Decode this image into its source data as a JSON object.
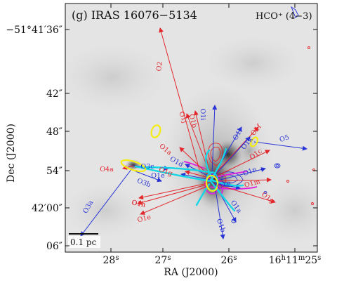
{
  "panel_title": "(g) IRAS 16076−5134",
  "line_label": "HCO⁺ (4−3)",
  "x_axis_label": "RA (J2000)",
  "y_axis_label": "Dec (J2000)",
  "x_ticks": [
    {
      "parts": [
        [
          "28",
          ""
        ],
        [
          "s",
          "sup"
        ]
      ]
    },
    {
      "parts": [
        [
          "27",
          ""
        ],
        [
          "s",
          "sup"
        ]
      ]
    },
    {
      "parts": [
        [
          "26",
          ""
        ],
        [
          "s",
          "sup"
        ]
      ]
    },
    {
      "parts": [
        [
          "16",
          ""
        ],
        [
          "h",
          "sup"
        ],
        [
          "11",
          ""
        ],
        [
          "m",
          "sup"
        ],
        [
          "25",
          ""
        ],
        [
          "s",
          "sup"
        ]
      ]
    }
  ],
  "y_ticks": [
    "−51°41′36″",
    "42″",
    "48″",
    "54″",
    "42′00″",
    "06″"
  ],
  "scale_bar_label": "0.1 pc",
  "colors": {
    "red": "#e3262b",
    "blue": "#2733d6",
    "magenta": "#e01ee0",
    "cyan": "#12d6e6",
    "yellow": "#f4ec12"
  },
  "outflows": [
    {
      "id": "O2",
      "color": "red"
    },
    {
      "id": "O1j",
      "color": "red"
    },
    {
      "id": "O1b",
      "color": "red"
    },
    {
      "id": "O1i",
      "color": "blue"
    },
    {
      "id": "O1a",
      "color": "red"
    },
    {
      "id": "O1l",
      "color": "blue"
    },
    {
      "id": "O1f",
      "color": "red"
    },
    {
      "id": "O1k",
      "color": "blue"
    },
    {
      "id": "O1c",
      "color": "red"
    },
    {
      "id": "O5",
      "color": "blue"
    },
    {
      "id": "O1d",
      "color": "blue"
    },
    {
      "id": "O1g",
      "color": "red"
    },
    {
      "id": "O1e",
      "color": "blue"
    },
    {
      "id": "O4a",
      "color": "red"
    },
    {
      "id": "O3c",
      "color": "blue"
    },
    {
      "id": "O1n",
      "color": "blue"
    },
    {
      "id": "O1m",
      "color": "red"
    },
    {
      "id": "O3b",
      "color": "blue"
    },
    {
      "id": "O1h",
      "color": "red"
    },
    {
      "id": "O1o",
      "color": "blue"
    },
    {
      "id": "O1g",
      "color": "red"
    },
    {
      "id": "O1h",
      "color": "red"
    },
    {
      "id": "O1e",
      "color": "red"
    },
    {
      "id": "O1a",
      "color": "blue"
    },
    {
      "id": "O1b",
      "color": "blue"
    },
    {
      "id": "O3a",
      "color": "blue"
    }
  ]
}
